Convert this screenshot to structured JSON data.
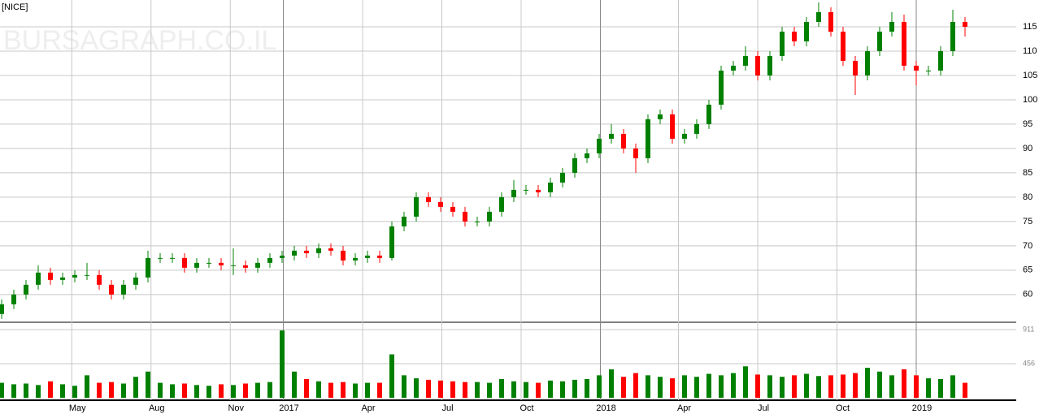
{
  "chart_data": [
    {
      "type": "candlestick",
      "title": "[NICE]",
      "watermark": "BURSAGRAPH.CO.IL",
      "up_color": "#008000",
      "down_color": "#ff0000",
      "grid": true,
      "xlim": [
        0,
        160
      ],
      "xticks": [
        {
          "value": 11.5,
          "label": "May"
        },
        {
          "value": 24.5,
          "label": "Aug"
        },
        {
          "value": 37.5,
          "label": "Nov"
        },
        {
          "value": 46.2,
          "label": "2017"
        },
        {
          "value": 59.2,
          "label": "Apr"
        },
        {
          "value": 72.2,
          "label": "Jul"
        },
        {
          "value": 85.2,
          "label": "Oct"
        },
        {
          "value": 98.2,
          "label": "2018"
        },
        {
          "value": 111,
          "label": "Apr"
        },
        {
          "value": 124,
          "label": "Jul"
        },
        {
          "value": 137,
          "label": "Oct"
        },
        {
          "value": 150,
          "label": "2019"
        }
      ],
      "ylim": [
        54.3,
        120.5
      ],
      "yticks": [
        60,
        65,
        70,
        75,
        80,
        85,
        90,
        95,
        100,
        105,
        110,
        115
      ],
      "x": [
        0,
        2,
        4,
        6,
        8,
        10,
        12,
        14,
        16,
        18,
        20,
        22,
        24,
        26,
        28,
        30,
        32,
        34,
        36,
        38,
        40,
        42,
        44,
        46,
        48,
        50,
        52,
        54,
        56,
        58,
        60,
        62,
        64,
        66,
        68,
        70,
        72,
        74,
        76,
        78,
        80,
        82,
        84,
        86,
        88,
        90,
        92,
        94,
        96,
        98,
        100,
        102,
        104,
        106,
        108,
        110,
        112,
        114,
        116,
        118,
        120,
        122,
        124,
        126,
        128,
        130,
        132,
        134,
        136,
        138,
        140,
        142,
        144,
        146,
        148,
        150,
        152,
        154,
        156,
        158
      ],
      "open": [
        56,
        58,
        60,
        62,
        64.5,
        63,
        63.5,
        64,
        64,
        62,
        60,
        62,
        63.5,
        67.5,
        67.5,
        67.5,
        65.5,
        66.5,
        66.5,
        66,
        66,
        65.5,
        66.5,
        67.5,
        68,
        69,
        68.5,
        69.5,
        69,
        67,
        67.5,
        68,
        67.5,
        74,
        76,
        80,
        79,
        78,
        77,
        75,
        75,
        77,
        80,
        81.5,
        81.5,
        81,
        83,
        85,
        88,
        89,
        92,
        93,
        90,
        88,
        96,
        97,
        92,
        93,
        95,
        99,
        106,
        107,
        109,
        105,
        109,
        114,
        112,
        116,
        118,
        114,
        108,
        105,
        110,
        114,
        116,
        107,
        106,
        106,
        110,
        116
      ],
      "high": [
        59,
        61,
        63,
        66,
        65.5,
        64.5,
        65,
        66.5,
        65,
        63,
        63,
        64.5,
        69,
        68.5,
        68.5,
        68.5,
        67.5,
        67.5,
        67.5,
        69.5,
        67,
        67.5,
        68.5,
        69,
        70,
        70,
        70.5,
        70.5,
        70,
        68.5,
        69,
        69,
        75,
        77,
        81,
        81,
        80,
        79,
        78,
        76,
        78,
        81,
        83.5,
        82.5,
        82.5,
        84,
        86,
        89,
        90,
        93,
        95,
        94,
        91,
        97,
        98,
        98,
        94,
        96,
        100,
        107,
        108,
        111,
        110,
        110,
        115,
        115,
        117,
        120,
        119,
        115,
        109,
        111,
        115,
        118,
        117.5,
        108,
        107,
        111,
        118.5,
        117
      ],
      "low": [
        55,
        57,
        59,
        61,
        62,
        62,
        62.5,
        63,
        61,
        59,
        59,
        61,
        62.5,
        66.5,
        66.5,
        64.5,
        64.5,
        65.5,
        65,
        64,
        64.5,
        64.5,
        65.5,
        66.5,
        67,
        67.5,
        67.5,
        68,
        66,
        66,
        66.5,
        66.5,
        67,
        73,
        75,
        78,
        77,
        76,
        74,
        74,
        74,
        76,
        79,
        80.5,
        80,
        80,
        82,
        84,
        87,
        88,
        91,
        89,
        85,
        87,
        95,
        91,
        91,
        92,
        94,
        98,
        105,
        106,
        104,
        104,
        108,
        111,
        111,
        115,
        113,
        107,
        101,
        104,
        109,
        113,
        106,
        103,
        105,
        105,
        109,
        113
      ],
      "close": [
        58,
        60,
        62,
        64.5,
        63,
        63.5,
        64,
        64,
        62,
        60,
        62,
        63.5,
        67.5,
        67.5,
        67.5,
        65.5,
        66.5,
        66.5,
        66,
        66,
        65.5,
        66.5,
        67.5,
        68,
        69,
        68.5,
        69.5,
        69,
        67,
        67.5,
        68,
        67.5,
        74,
        76,
        80,
        79,
        78,
        77,
        75,
        75,
        77,
        80,
        81.5,
        81.5,
        81,
        83,
        85,
        88,
        89,
        92,
        93,
        90,
        88,
        96,
        97,
        92,
        93,
        95,
        99,
        106,
        107,
        109,
        105,
        109,
        114,
        112,
        116,
        118,
        114,
        108,
        105,
        110,
        114,
        116,
        107,
        106,
        106,
        110,
        116,
        115
      ]
    },
    {
      "type": "bar",
      "ylim": [
        0,
        1009
      ],
      "yticks": [
        456,
        911
      ],
      "values": [
        200,
        180,
        190,
        170,
        220,
        180,
        160,
        300,
        200,
        210,
        190,
        280,
        350,
        200,
        180,
        190,
        170,
        160,
        180,
        170,
        190,
        200,
        210,
        900,
        350,
        250,
        220,
        200,
        210,
        190,
        200,
        200,
        580,
        300,
        260,
        240,
        230,
        220,
        210,
        210,
        200,
        250,
        220,
        210,
        200,
        230,
        220,
        240,
        250,
        300,
        380,
        280,
        330,
        300,
        280,
        260,
        300,
        280,
        320,
        300,
        330,
        420,
        310,
        300,
        280,
        300,
        320,
        290,
        300,
        310,
        330,
        400,
        350,
        300,
        380,
        300,
        260,
        250,
        300,
        200
      ]
    }
  ]
}
